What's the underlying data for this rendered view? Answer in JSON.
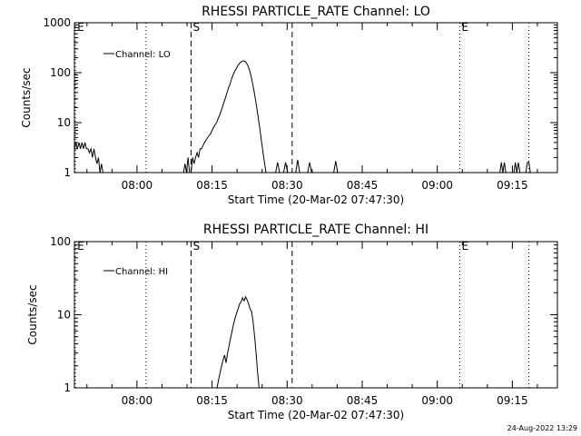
{
  "footer": {
    "timestamp": "24-Aug-2022 13:29"
  },
  "chart_data": [
    {
      "type": "line",
      "title": "RHESSI PARTICLE_RATE Channel: LO",
      "xlabel": "Start Time (20-Mar-02 07:47:30)",
      "ylabel": "Counts/sec",
      "yscale": "log",
      "ylim": [
        1,
        1000
      ],
      "xlim": [
        0,
        96.5
      ],
      "xticks": [
        {
          "x": 12.5,
          "label": "08:00"
        },
        {
          "x": 27.5,
          "label": "08:15"
        },
        {
          "x": 42.5,
          "label": "08:30"
        },
        {
          "x": 57.5,
          "label": "08:45"
        },
        {
          "x": 72.5,
          "label": "09:00"
        },
        {
          "x": 87.5,
          "label": "09:15"
        }
      ],
      "yticks": [
        {
          "y": 1,
          "label": "1"
        },
        {
          "y": 10,
          "label": "10"
        },
        {
          "y": 100,
          "label": "100"
        },
        {
          "y": 1000,
          "label": "1000"
        }
      ],
      "legend": {
        "position": "top-left",
        "entries": [
          "Channel: LO"
        ]
      },
      "markers": [
        {
          "x": 0.2,
          "style": "dotted",
          "label": "E"
        },
        {
          "x": 14.3,
          "style": "dotted",
          "label": ""
        },
        {
          "x": 23.3,
          "style": "dashed",
          "label": "S"
        },
        {
          "x": 43.5,
          "style": "dashed",
          "label": ""
        },
        {
          "x": 77.0,
          "style": "dotted",
          "label": "E"
        },
        {
          "x": 90.8,
          "style": "dotted",
          "label": ""
        }
      ],
      "series": [
        {
          "name": "Channel: LO",
          "segments": [
            [
              [
                0,
                3
              ],
              [
                0.3,
                4
              ],
              [
                0.6,
                3
              ],
              [
                0.9,
                4
              ],
              [
                1.2,
                3
              ],
              [
                1.5,
                4
              ],
              [
                1.8,
                3
              ],
              [
                2.1,
                4
              ],
              [
                2.4,
                3
              ],
              [
                2.7,
                3
              ],
              [
                3.0,
                2.5
              ],
              [
                3.3,
                3
              ],
              [
                3.6,
                2
              ],
              [
                3.9,
                3
              ],
              [
                4.2,
                2
              ],
              [
                4.5,
                1.5
              ],
              [
                4.8,
                2
              ],
              [
                5.1,
                1
              ],
              [
                5.4,
                1.5
              ],
              [
                5.7,
                1
              ],
              [
                6.0,
                1
              ]
            ],
            [
              [
                21.8,
                1
              ],
              [
                22.1,
                1.5
              ],
              [
                22.4,
                1
              ],
              [
                22.7,
                2
              ],
              [
                23.0,
                1
              ],
              [
                23.3,
                1
              ],
              [
                23.6,
                2
              ],
              [
                23.9,
                1.5
              ],
              [
                24.2,
                2
              ],
              [
                24.5,
                2.5
              ],
              [
                24.8,
                2
              ],
              [
                25.1,
                3
              ],
              [
                25.4,
                3
              ],
              [
                25.7,
                3.5
              ],
              [
                26.0,
                4
              ],
              [
                26.3,
                4.5
              ],
              [
                26.6,
                5
              ],
              [
                26.9,
                5.5
              ],
              [
                27.2,
                6
              ],
              [
                27.5,
                7
              ],
              [
                27.8,
                8
              ],
              [
                28.1,
                9
              ],
              [
                28.4,
                10
              ],
              [
                28.7,
                12
              ],
              [
                29.0,
                14
              ],
              [
                29.3,
                17
              ],
              [
                29.6,
                21
              ],
              [
                29.9,
                26
              ],
              [
                30.2,
                32
              ],
              [
                30.5,
                40
              ],
              [
                30.8,
                50
              ],
              [
                31.1,
                60
              ],
              [
                31.4,
                75
              ],
              [
                31.7,
                90
              ],
              [
                32.0,
                105
              ],
              [
                32.3,
                120
              ],
              [
                32.6,
                135
              ],
              [
                32.9,
                150
              ],
              [
                33.2,
                162
              ],
              [
                33.5,
                170
              ],
              [
                33.8,
                172
              ],
              [
                34.1,
                168
              ],
              [
                34.4,
                155
              ],
              [
                34.7,
                135
              ],
              [
                35.0,
                110
              ],
              [
                35.3,
                85
              ],
              [
                35.6,
                60
              ],
              [
                35.9,
                42
              ],
              [
                36.2,
                28
              ],
              [
                36.5,
                18
              ],
              [
                36.8,
                11
              ],
              [
                37.1,
                7
              ],
              [
                37.4,
                4
              ],
              [
                37.7,
                2.5
              ],
              [
                38.0,
                1.5
              ],
              [
                38.3,
                1
              ]
            ],
            [
              [
                40.2,
                1
              ],
              [
                40.6,
                1.6
              ],
              [
                41.0,
                1
              ]
            ],
            [
              [
                41.8,
                1
              ],
              [
                42.2,
                1.6
              ],
              [
                42.6,
                1
              ]
            ],
            [
              [
                44.2,
                1
              ],
              [
                44.6,
                1.8
              ],
              [
                45.0,
                1
              ]
            ],
            [
              [
                46.6,
                1
              ],
              [
                47.0,
                1.6
              ],
              [
                47.4,
                1
              ]
            ],
            [
              [
                51.8,
                1
              ],
              [
                52.2,
                1.7
              ],
              [
                52.6,
                1
              ]
            ],
            [
              [
                85.0,
                1
              ],
              [
                85.3,
                1.6
              ],
              [
                85.6,
                1
              ],
              [
                85.9,
                1.6
              ],
              [
                86.2,
                1
              ]
            ],
            [
              [
                87.8,
                1
              ],
              [
                88.1,
                1.6
              ],
              [
                88.4,
                1
              ],
              [
                88.7,
                1.6
              ],
              [
                89.0,
                1
              ]
            ],
            [
              [
                90.2,
                1
              ],
              [
                90.5,
                1.6
              ],
              [
                90.8,
                1.6
              ],
              [
                91.1,
                1
              ]
            ]
          ]
        }
      ]
    },
    {
      "type": "line",
      "title": "RHESSI PARTICLE_RATE Channel: HI",
      "xlabel": "Start Time (20-Mar-02 07:47:30)",
      "ylabel": "Counts/sec",
      "yscale": "log",
      "ylim": [
        1,
        100
      ],
      "xlim": [
        0,
        96.5
      ],
      "xticks": [
        {
          "x": 12.5,
          "label": "08:00"
        },
        {
          "x": 27.5,
          "label": "08:15"
        },
        {
          "x": 42.5,
          "label": "08:30"
        },
        {
          "x": 57.5,
          "label": "08:45"
        },
        {
          "x": 72.5,
          "label": "09:00"
        },
        {
          "x": 87.5,
          "label": "09:15"
        }
      ],
      "yticks": [
        {
          "y": 1,
          "label": "1"
        },
        {
          "y": 10,
          "label": "10"
        },
        {
          "y": 100,
          "label": "100"
        }
      ],
      "legend": {
        "position": "top-left",
        "entries": [
          "Channel: HI"
        ]
      },
      "markers": [
        {
          "x": 0.2,
          "style": "dotted",
          "label": "E"
        },
        {
          "x": 14.3,
          "style": "dotted",
          "label": ""
        },
        {
          "x": 23.3,
          "style": "dashed",
          "label": "S"
        },
        {
          "x": 43.5,
          "style": "dashed",
          "label": ""
        },
        {
          "x": 77.0,
          "style": "dotted",
          "label": "E"
        },
        {
          "x": 90.8,
          "style": "dotted",
          "label": ""
        }
      ],
      "series": [
        {
          "name": "Channel: HI",
          "segments": [
            [
              [
                28.5,
                1
              ],
              [
                28.8,
                1.3
              ],
              [
                29.1,
                1.6
              ],
              [
                29.4,
                2
              ],
              [
                29.7,
                2.4
              ],
              [
                30.0,
                2.8
              ],
              [
                30.3,
                2.2
              ],
              [
                30.6,
                3
              ],
              [
                30.9,
                3.8
              ],
              [
                31.2,
                4.8
              ],
              [
                31.5,
                6
              ],
              [
                31.8,
                7.5
              ],
              [
                32.1,
                9
              ],
              [
                32.4,
                10.5
              ],
              [
                32.7,
                12
              ],
              [
                33.0,
                14
              ],
              [
                33.3,
                15
              ],
              [
                33.6,
                17
              ],
              [
                33.9,
                15.5
              ],
              [
                34.2,
                17.5
              ],
              [
                34.5,
                16
              ],
              [
                34.8,
                14
              ],
              [
                35.1,
                12
              ],
              [
                35.4,
                11
              ],
              [
                35.7,
                8
              ],
              [
                36.0,
                5
              ],
              [
                36.3,
                3
              ],
              [
                36.6,
                1.6
              ],
              [
                36.9,
                1
              ]
            ]
          ]
        }
      ]
    }
  ]
}
